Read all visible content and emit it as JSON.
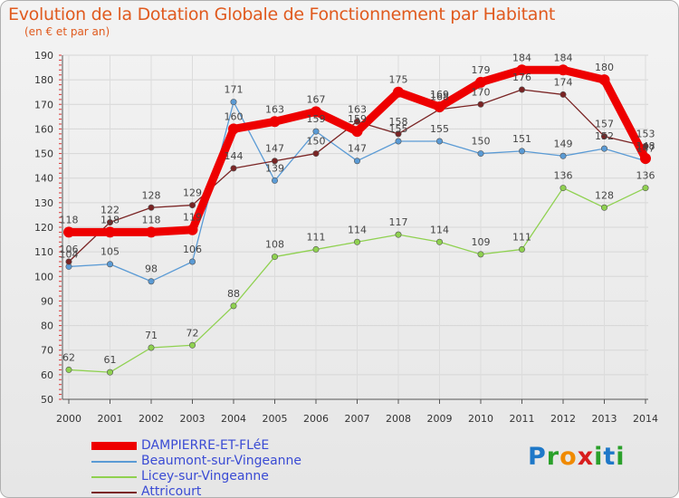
{
  "title": "Evolution de la Dotation Globale de Fonctionnement par Habitant",
  "subtitle": "(en € et par an)",
  "logo": {
    "text": "Proxiti",
    "letters": [
      "P",
      "r",
      "o",
      "x",
      "i",
      "t",
      "i"
    ],
    "colors": [
      "#1e78c8",
      "#2aa02a",
      "#f08a00",
      "#d81e1e",
      "#2aa02a",
      "#1e78c8",
      "#2aa02a"
    ]
  },
  "chart_data": {
    "type": "line",
    "title": "Evolution de la Dotation Globale de Fonctionnement par Habitant",
    "subtitle": "(en € et par an)",
    "x": [
      "2000",
      "2001",
      "2002",
      "2003",
      "2004",
      "2005",
      "2006",
      "2007",
      "2008",
      "2009",
      "2010",
      "2011",
      "2012",
      "2013",
      "2014"
    ],
    "ylim": [
      50,
      190
    ],
    "yticks": [
      50,
      60,
      70,
      80,
      90,
      100,
      110,
      120,
      130,
      140,
      150,
      160,
      170,
      180,
      190
    ],
    "grid": true,
    "series": [
      {
        "name": "DAMPIERRE-ET-FLéE",
        "color": "#ee0000",
        "values": [
          118,
          118,
          118,
          119,
          160,
          163,
          167,
          159,
          175,
          169,
          179,
          184,
          184,
          180,
          148
        ],
        "labels": [
          "118",
          "118",
          "118",
          "119",
          "160",
          "163",
          "167",
          "159",
          "175",
          "169",
          "179",
          "184",
          "184",
          "180",
          "148"
        ]
      },
      {
        "name": "Beaumont-sur-Vingeanne",
        "color": "#5b9bd5",
        "values": [
          104,
          105,
          98,
          106,
          171,
          139,
          159,
          147,
          155,
          155,
          150,
          151,
          149,
          152,
          147
        ],
        "labels": [
          "104",
          "105",
          "98",
          "106",
          "171",
          "139",
          "159",
          "147",
          "155",
          "155",
          "150",
          "151",
          "149",
          "152",
          "147"
        ]
      },
      {
        "name": "Licey-sur-Vingeanne",
        "color": "#8fd150",
        "values": [
          62,
          61,
          71,
          72,
          88,
          108,
          111,
          114,
          117,
          114,
          109,
          111,
          136,
          128,
          136
        ],
        "labels": [
          "62",
          "61",
          "71",
          "72",
          "88",
          "108",
          "111",
          "114",
          "117",
          "114",
          "109",
          "111",
          "136",
          "128",
          "136"
        ]
      },
      {
        "name": "Attricourt",
        "color": "#7a2424",
        "values": [
          106,
          122,
          128,
          129,
          144,
          147,
          150,
          163,
          158,
          168,
          170,
          176,
          174,
          157,
          153
        ],
        "labels": [
          "106",
          "122",
          "128",
          "129",
          "144",
          "147",
          "150",
          "163",
          "158",
          "168",
          "170",
          "176",
          "174",
          "157",
          "153"
        ]
      }
    ]
  }
}
